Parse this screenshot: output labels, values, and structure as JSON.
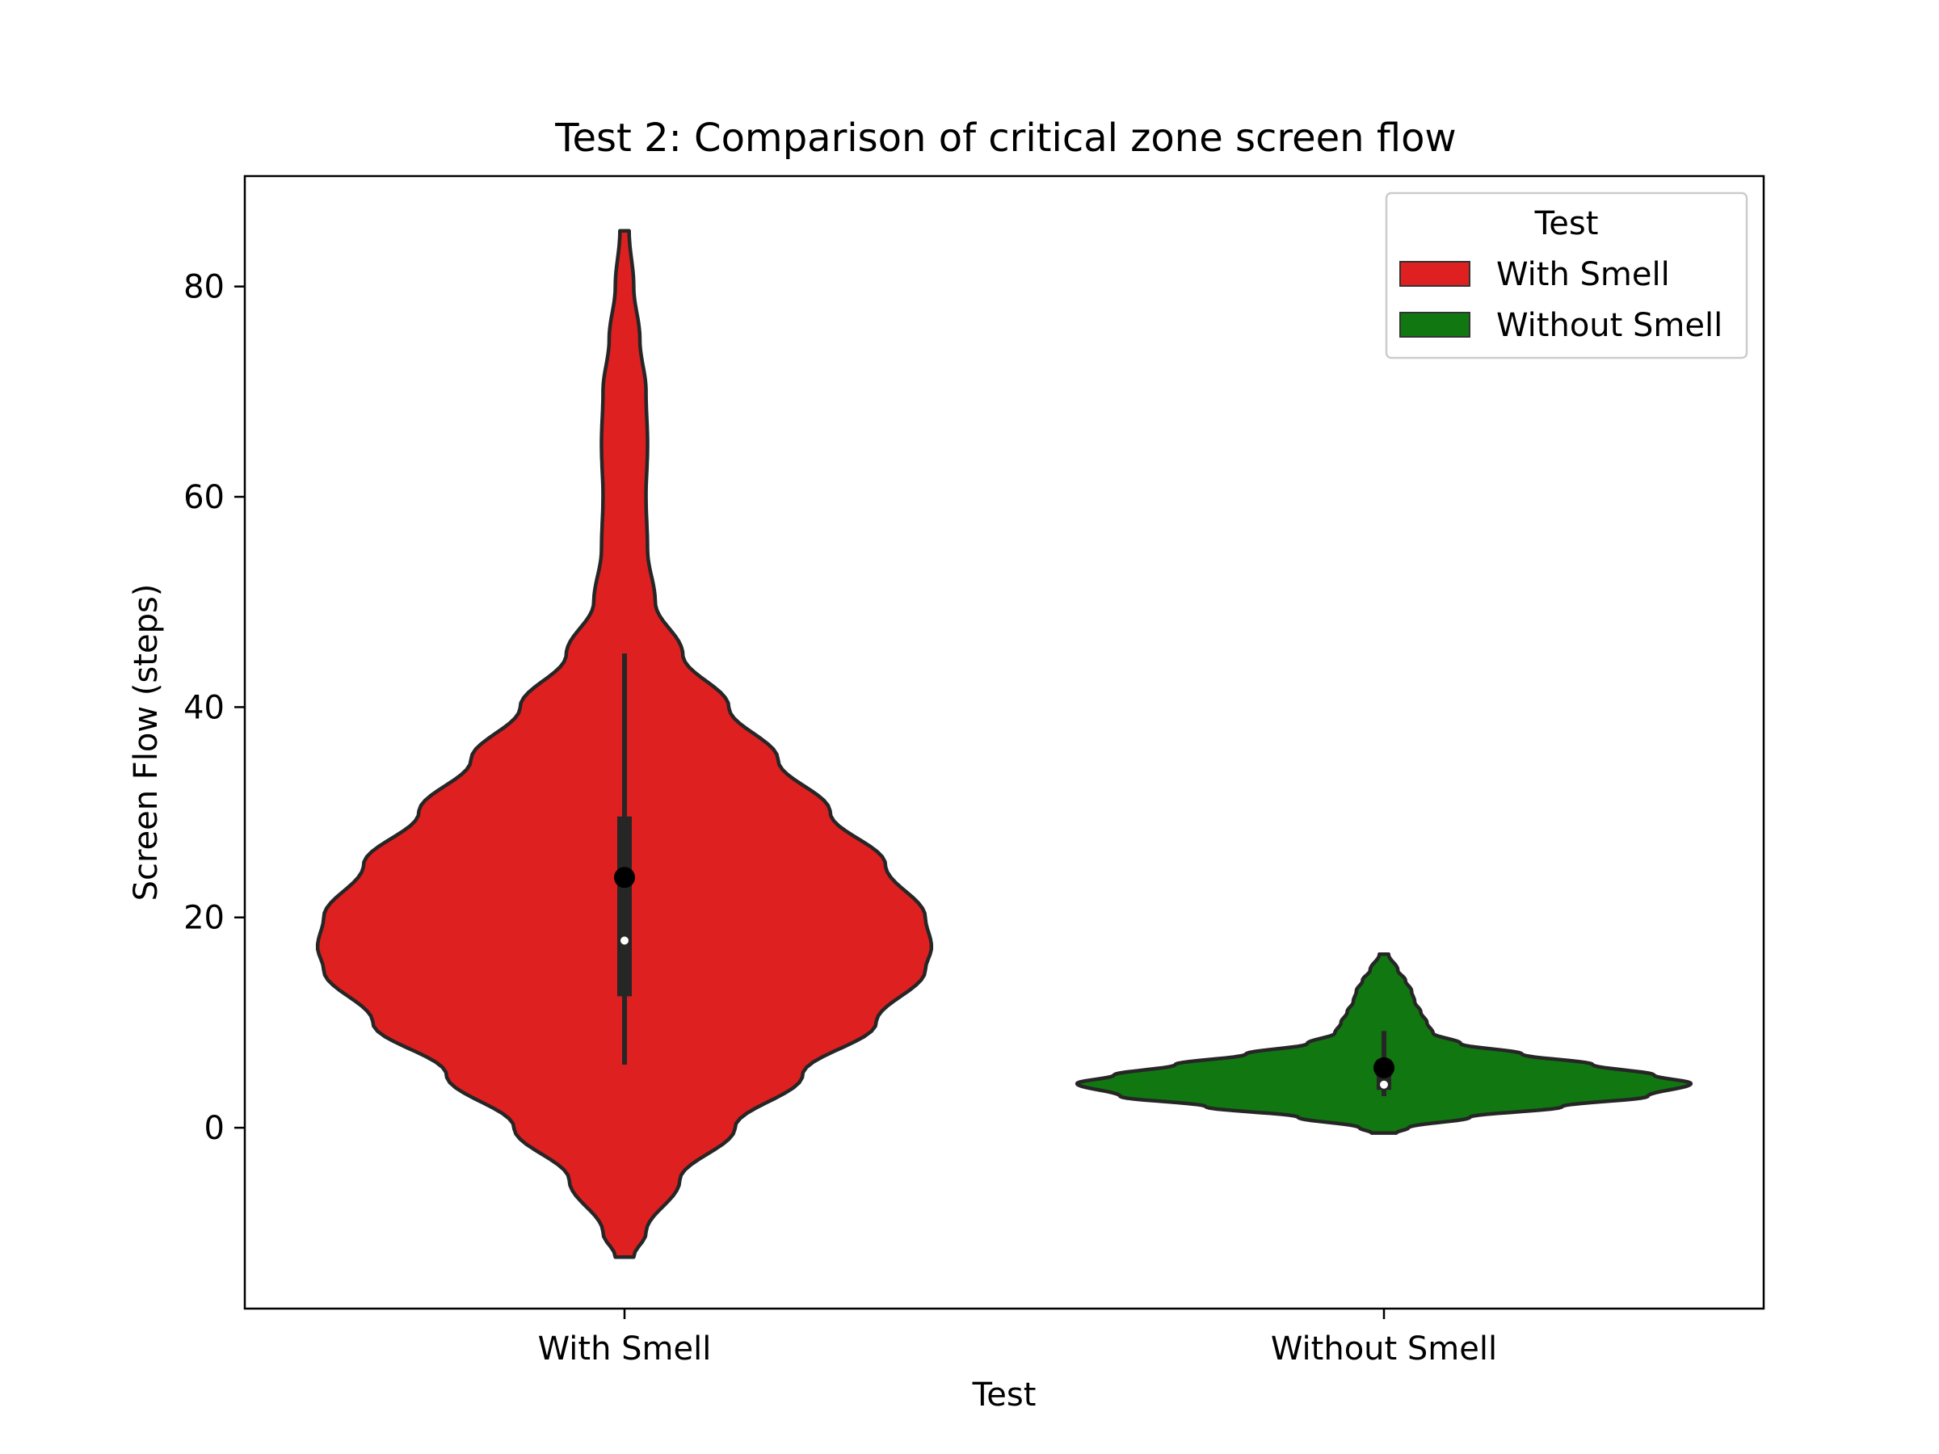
{
  "chart_data": {
    "type": "violin",
    "title": "Test 2: Comparison of critical zone screen flow",
    "xlabel": "Test",
    "ylabel": "Screen Flow (steps)",
    "categories": [
      "With Smell",
      "Without Smell"
    ],
    "ylim": [
      -17.2,
      90.5
    ],
    "yticks": [
      0,
      20,
      40,
      60,
      80
    ],
    "grid": false,
    "legend": {
      "title": "Test",
      "position": "top-right",
      "entries": [
        "With Smell",
        "Without Smell"
      ]
    },
    "series": [
      {
        "name": "With Smell",
        "color": "#df2020",
        "kde_range": [
          -12.3,
          85.3
        ],
        "density_profile": [
          [
            -12.3,
            0.03
          ],
          [
            -10,
            0.07
          ],
          [
            -5,
            0.18
          ],
          [
            0,
            0.36
          ],
          [
            5,
            0.58
          ],
          [
            10,
            0.82
          ],
          [
            15,
            0.98
          ],
          [
            17.2,
            1.0
          ],
          [
            20,
            0.98
          ],
          [
            25,
            0.85
          ],
          [
            30,
            0.67
          ],
          [
            35,
            0.5
          ],
          [
            40,
            0.34
          ],
          [
            45,
            0.19
          ],
          [
            50,
            0.1
          ],
          [
            55,
            0.075
          ],
          [
            60,
            0.07
          ],
          [
            65,
            0.075
          ],
          [
            70,
            0.07
          ],
          [
            75,
            0.05
          ],
          [
            80,
            0.03
          ],
          [
            85.3,
            0.015
          ]
        ],
        "whisker": [
          6,
          45.1
        ],
        "q1": 12.5,
        "q3": 29.6,
        "median": 17.8,
        "mean": 23.8
      },
      {
        "name": "Without Smell",
        "color": "#117711",
        "kde_range": [
          -0.5,
          16.5
        ],
        "density_profile": [
          [
            -0.5,
            0.04
          ],
          [
            0,
            0.08
          ],
          [
            1,
            0.28
          ],
          [
            2,
            0.58
          ],
          [
            3,
            0.86
          ],
          [
            4.2,
            1.0
          ],
          [
            5,
            0.88
          ],
          [
            6,
            0.68
          ],
          [
            7,
            0.45
          ],
          [
            8,
            0.25
          ],
          [
            9,
            0.16
          ],
          [
            10,
            0.14
          ],
          [
            11,
            0.12
          ],
          [
            12,
            0.1
          ],
          [
            13,
            0.09
          ],
          [
            14,
            0.07
          ],
          [
            15,
            0.045
          ],
          [
            16.5,
            0.015
          ]
        ],
        "whisker": [
          3,
          9.2
        ],
        "q1": 3.6,
        "q3": 6.5,
        "median": 4.1,
        "mean": 5.7
      }
    ]
  }
}
